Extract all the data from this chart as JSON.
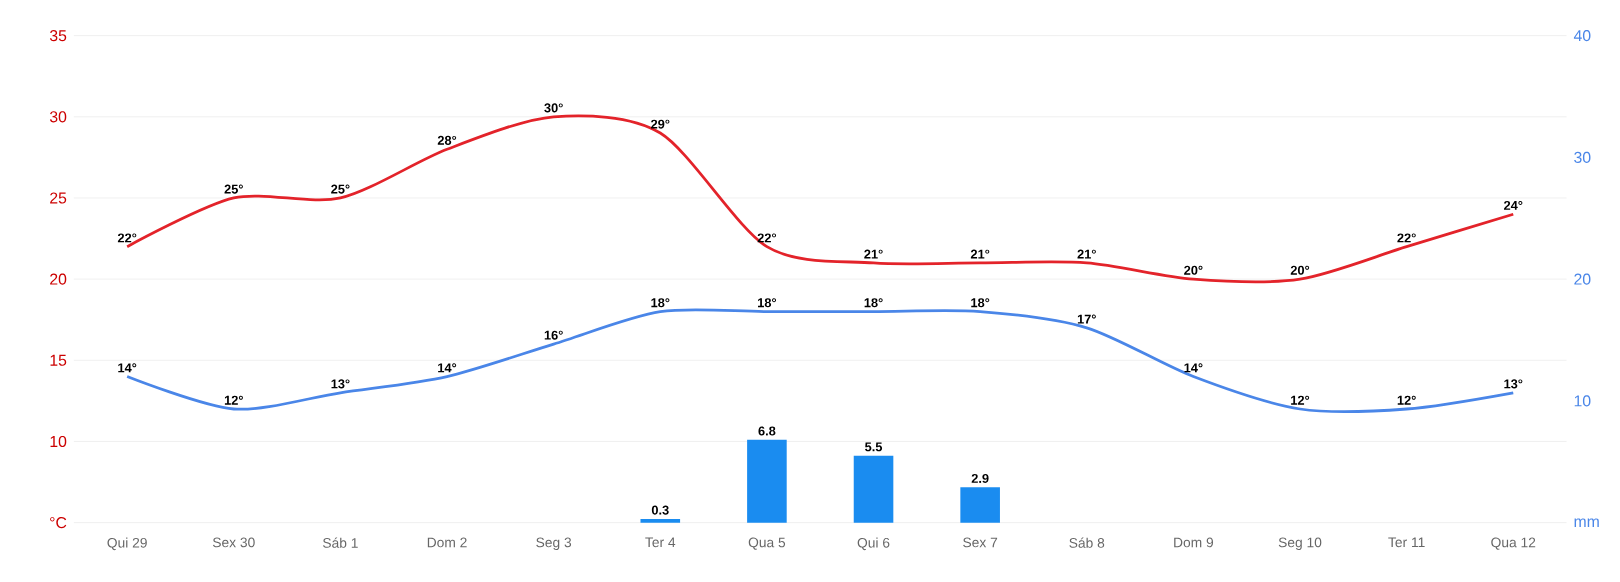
{
  "chart_data": {
    "type": "line",
    "categories": [
      "Qui 29",
      "Sex 30",
      "Sáb 1",
      "Dom 2",
      "Seg 3",
      "Ter 4",
      "Qua 5",
      "Qui 6",
      "Sex 7",
      "Sáb 8",
      "Dom 9",
      "Seg 10",
      "Ter 11",
      "Qua 12"
    ],
    "series": [
      {
        "color": "#e3232a",
        "values": [
          22,
          25,
          25,
          28,
          30,
          29,
          22,
          21,
          21,
          21,
          20,
          20,
          22,
          24
        ],
        "value_labels": [
          "22°",
          "25°",
          "25°",
          "28°",
          "30°",
          "29°",
          "22°",
          "21°",
          "21°",
          "21°",
          "20°",
          "20°",
          "22°",
          "24°"
        ]
      },
      {
        "color": "#4a86e8",
        "values": [
          14,
          12,
          13,
          14,
          16,
          18,
          18,
          18,
          18,
          17,
          14,
          12,
          12,
          13
        ],
        "value_labels": [
          "14°",
          "12°",
          "13°",
          "14°",
          "16°",
          "18°",
          "18°",
          "18°",
          "18°",
          "17°",
          "14°",
          "12°",
          "12°",
          "13°"
        ]
      },
      {
        "type": "bar",
        "axis": "y2",
        "color": "#1a8cf0",
        "values": [
          null,
          null,
          null,
          null,
          null,
          0.3,
          6.8,
          5.5,
          2.9,
          null,
          null,
          null,
          null,
          null
        ],
        "value_labels": [
          null,
          null,
          null,
          null,
          null,
          "0.3",
          "6.8",
          "5.5",
          "2.9",
          null,
          null,
          null,
          null,
          null
        ]
      }
    ],
    "ylim": [
      5,
      35
    ],
    "yticks": [
      {
        "value": 5,
        "label": "°C"
      },
      10,
      15,
      20,
      25,
      30,
      35
    ],
    "y2lim": [
      0,
      40
    ],
    "y2ticks": [
      {
        "value": 0,
        "label": "mm"
      },
      10,
      20,
      30,
      40
    ],
    "grid": "y"
  }
}
